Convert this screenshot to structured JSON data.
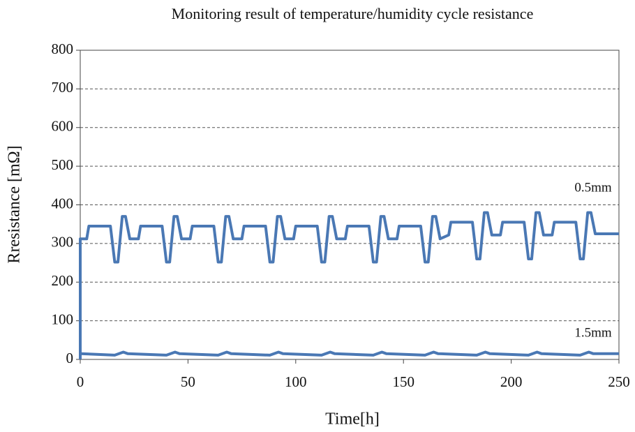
{
  "chart_data": {
    "type": "line",
    "title": "Monitoring result of temperature/humidity cycle resistance",
    "x_label": "Time[h]",
    "y_label": "Rresistance [mΩ]",
    "xlim": [
      0,
      250
    ],
    "xticks": [
      0,
      50,
      100,
      150,
      200,
      250
    ],
    "ylim": [
      0,
      800
    ],
    "yticks": [
      0,
      100,
      200,
      300,
      400,
      500,
      600,
      700,
      800
    ],
    "grid": true,
    "series": [
      {
        "name": "0.5mm",
        "color": "#4a78b4",
        "x": [
          0,
          0,
          3,
          4,
          14,
          16,
          17.5,
          19.5,
          21,
          23,
          27,
          28,
          38,
          40,
          41.5,
          43.5,
          45,
          47,
          51,
          52,
          62,
          64,
          65.5,
          67.5,
          69,
          71,
          75,
          76,
          86,
          88,
          89.5,
          91.5,
          93,
          95,
          99,
          100,
          110,
          112,
          113.5,
          115.5,
          117,
          119,
          123,
          124,
          134,
          136,
          137.5,
          139.5,
          141,
          143,
          147,
          148,
          158,
          160,
          161.5,
          163.5,
          165,
          167,
          171,
          172,
          182,
          184,
          185.5,
          187.5,
          189,
          191,
          195,
          196,
          206,
          208,
          209.5,
          211.5,
          213,
          215,
          219,
          220,
          230,
          232,
          233.5,
          235.5,
          237,
          239,
          250
        ],
        "values": [
          0,
          312,
          312,
          345,
          345,
          252,
          252,
          370,
          370,
          312,
          312,
          345,
          345,
          252,
          252,
          370,
          370,
          312,
          312,
          345,
          345,
          252,
          252,
          370,
          370,
          312,
          312,
          345,
          345,
          252,
          252,
          370,
          370,
          312,
          312,
          345,
          345,
          252,
          252,
          370,
          370,
          312,
          312,
          345,
          345,
          252,
          252,
          370,
          370,
          312,
          312,
          345,
          345,
          252,
          252,
          370,
          370,
          312,
          322,
          355,
          355,
          260,
          260,
          380,
          380,
          322,
          322,
          355,
          355,
          260,
          260,
          380,
          380,
          322,
          322,
          355,
          355,
          260,
          260,
          380,
          380,
          325,
          325
        ]
      },
      {
        "name": "1.5mm",
        "color": "#4a78b4",
        "x": [
          0,
          16,
          20,
          22,
          40,
          44,
          46,
          64,
          68,
          70,
          88,
          92,
          94,
          112,
          116,
          118,
          136,
          140,
          142,
          160,
          164,
          166,
          184,
          188,
          190,
          208,
          212,
          214,
          232,
          236,
          238,
          250
        ],
        "values": [
          15,
          11,
          19,
          15,
          11,
          19,
          15,
          11,
          19,
          15,
          11,
          19,
          15,
          11,
          19,
          15,
          11,
          19,
          15,
          11,
          19,
          15,
          11,
          19,
          15,
          11,
          19,
          15,
          11,
          19,
          15,
          15
        ]
      }
    ]
  }
}
